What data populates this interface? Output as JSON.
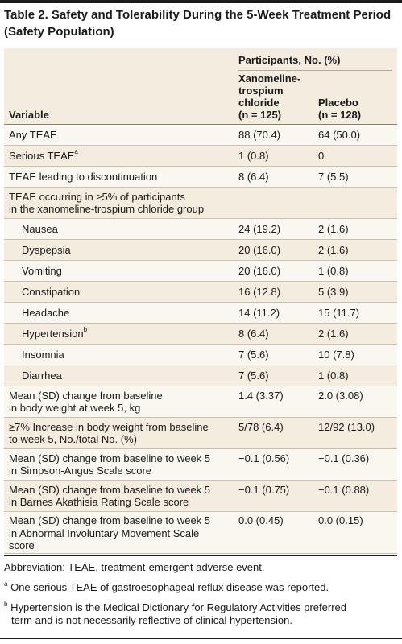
{
  "title_line1": "Table 2. Safety and Tolerability During the 5-Week Treatment Period",
  "title_line2": "(Safety Population)",
  "header": {
    "group": "Participants, No. (%)",
    "variable": "Variable",
    "xanomeline": "Xanomeline-\ntrospium\nchloride\n(n = 125)",
    "placebo": "Placebo\n(n = 128)"
  },
  "rows": [
    {
      "variable": "Any TEAE",
      "x": "88 (70.4)",
      "p": "64 (50.0)"
    },
    {
      "variable": "Serious TEAE",
      "sup": "a",
      "x": "1 (0.8)",
      "p": "0"
    },
    {
      "variable": "TEAE leading to discontinuation",
      "x": "8 (6.4)",
      "p": "7 (5.5)"
    },
    {
      "variable": "TEAE occurring in ≥5% of participants\nin the xanomeline-trospium chloride group",
      "x": "",
      "p": ""
    },
    {
      "variable": "Nausea",
      "x": "24 (19.2)",
      "p": "2 (1.6)"
    },
    {
      "variable": "Dyspepsia",
      "x": "20 (16.0)",
      "p": "2 (1.6)"
    },
    {
      "variable": "Vomiting",
      "x": "20 (16.0)",
      "p": "1 (0.8)"
    },
    {
      "variable": "Constipation",
      "x": "16 (12.8)",
      "p": "5 (3.9)"
    },
    {
      "variable": "Headache",
      "x": "14 (11.2)",
      "p": "15 (11.7)"
    },
    {
      "variable": "Hypertension",
      "sup": "b",
      "x": "8 (6.4)",
      "p": "2 (1.6)"
    },
    {
      "variable": "Insomnia",
      "x": "7 (5.6)",
      "p": "10 (7.8)"
    },
    {
      "variable": "Diarrhea",
      "x": "7 (5.6)",
      "p": "1 (0.8)"
    },
    {
      "variable": "Mean (SD) change from baseline\nin body weight at week 5, kg",
      "x": "1.4 (3.37)",
      "p": "2.0 (3.08)"
    },
    {
      "variable": "≥7% Increase in body weight from baseline\nto week 5, No./total No. (%)",
      "x": "5/78 (6.4)",
      "p": "12/92 (13.0)"
    },
    {
      "variable": "Mean (SD) change from baseline to week 5\nin Simpson-Angus Scale score",
      "x": "−0.1 (0.56)",
      "p": "−0.1 (0.36)"
    },
    {
      "variable": "Mean (SD) change from baseline to week 5\nin Barnes Akathisia Rating Scale score",
      "x": "−0.1 (0.75)",
      "p": "−0.1 (0.88)"
    },
    {
      "variable": "Mean (SD) change from baseline to week 5\nin Abnormal Involuntary Movement Scale\nscore",
      "x": "0.0 (0.45)",
      "p": "0.0 (0.15)"
    }
  ],
  "footnotes": {
    "abbreviation": "Abbreviation: TEAE, treatment-emergent adverse event.",
    "a_mark": "a",
    "a_text": "One serious TEAE of gastroesophageal reflux disease was reported.",
    "b_mark": "b",
    "b_text_1": "Hypertension is the Medical Dictionary for Regulatory Activities preferred",
    "b_text_2": "term and is not necessarily reflective of clinical hypertension."
  },
  "colors": {
    "header_bg": "#f3ecdf",
    "row_alt_bg": "#faf7f1",
    "rule": "#1a1a1a"
  }
}
